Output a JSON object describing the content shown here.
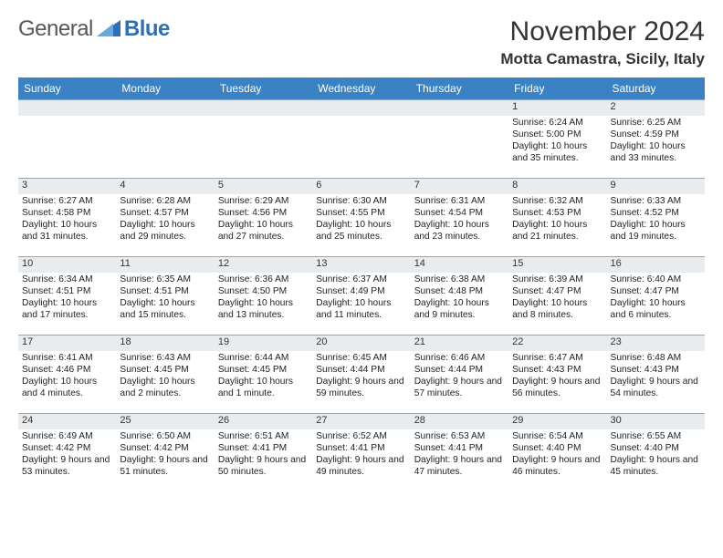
{
  "logo": {
    "word1": "General",
    "word2": "Blue",
    "icon": "triangle",
    "text_color": "#575757",
    "accent_color": "#2f6fb3"
  },
  "header": {
    "month_title": "November 2024",
    "location": "Motta Camastra, Sicily, Italy"
  },
  "styles": {
    "header_bg": "#3b82c4",
    "header_text": "#ffffff",
    "daynum_bg": "#e9ecef",
    "border_color": "#9aa8b6",
    "body_fontsize": 10.2,
    "daynum_fontsize": 11,
    "th_fontsize": 12,
    "title_fontsize": 30,
    "location_fontsize": 17
  },
  "columns": [
    "Sunday",
    "Monday",
    "Tuesday",
    "Wednesday",
    "Thursday",
    "Friday",
    "Saturday"
  ],
  "weeks": [
    [
      {
        "n": "",
        "sr": "",
        "ss": "",
        "dl": ""
      },
      {
        "n": "",
        "sr": "",
        "ss": "",
        "dl": ""
      },
      {
        "n": "",
        "sr": "",
        "ss": "",
        "dl": ""
      },
      {
        "n": "",
        "sr": "",
        "ss": "",
        "dl": ""
      },
      {
        "n": "",
        "sr": "",
        "ss": "",
        "dl": ""
      },
      {
        "n": "1",
        "sr": "Sunrise: 6:24 AM",
        "ss": "Sunset: 5:00 PM",
        "dl": "Daylight: 10 hours and 35 minutes."
      },
      {
        "n": "2",
        "sr": "Sunrise: 6:25 AM",
        "ss": "Sunset: 4:59 PM",
        "dl": "Daylight: 10 hours and 33 minutes."
      }
    ],
    [
      {
        "n": "3",
        "sr": "Sunrise: 6:27 AM",
        "ss": "Sunset: 4:58 PM",
        "dl": "Daylight: 10 hours and 31 minutes."
      },
      {
        "n": "4",
        "sr": "Sunrise: 6:28 AM",
        "ss": "Sunset: 4:57 PM",
        "dl": "Daylight: 10 hours and 29 minutes."
      },
      {
        "n": "5",
        "sr": "Sunrise: 6:29 AM",
        "ss": "Sunset: 4:56 PM",
        "dl": "Daylight: 10 hours and 27 minutes."
      },
      {
        "n": "6",
        "sr": "Sunrise: 6:30 AM",
        "ss": "Sunset: 4:55 PM",
        "dl": "Daylight: 10 hours and 25 minutes."
      },
      {
        "n": "7",
        "sr": "Sunrise: 6:31 AM",
        "ss": "Sunset: 4:54 PM",
        "dl": "Daylight: 10 hours and 23 minutes."
      },
      {
        "n": "8",
        "sr": "Sunrise: 6:32 AM",
        "ss": "Sunset: 4:53 PM",
        "dl": "Daylight: 10 hours and 21 minutes."
      },
      {
        "n": "9",
        "sr": "Sunrise: 6:33 AM",
        "ss": "Sunset: 4:52 PM",
        "dl": "Daylight: 10 hours and 19 minutes."
      }
    ],
    [
      {
        "n": "10",
        "sr": "Sunrise: 6:34 AM",
        "ss": "Sunset: 4:51 PM",
        "dl": "Daylight: 10 hours and 17 minutes."
      },
      {
        "n": "11",
        "sr": "Sunrise: 6:35 AM",
        "ss": "Sunset: 4:51 PM",
        "dl": "Daylight: 10 hours and 15 minutes."
      },
      {
        "n": "12",
        "sr": "Sunrise: 6:36 AM",
        "ss": "Sunset: 4:50 PM",
        "dl": "Daylight: 10 hours and 13 minutes."
      },
      {
        "n": "13",
        "sr": "Sunrise: 6:37 AM",
        "ss": "Sunset: 4:49 PM",
        "dl": "Daylight: 10 hours and 11 minutes."
      },
      {
        "n": "14",
        "sr": "Sunrise: 6:38 AM",
        "ss": "Sunset: 4:48 PM",
        "dl": "Daylight: 10 hours and 9 minutes."
      },
      {
        "n": "15",
        "sr": "Sunrise: 6:39 AM",
        "ss": "Sunset: 4:47 PM",
        "dl": "Daylight: 10 hours and 8 minutes."
      },
      {
        "n": "16",
        "sr": "Sunrise: 6:40 AM",
        "ss": "Sunset: 4:47 PM",
        "dl": "Daylight: 10 hours and 6 minutes."
      }
    ],
    [
      {
        "n": "17",
        "sr": "Sunrise: 6:41 AM",
        "ss": "Sunset: 4:46 PM",
        "dl": "Daylight: 10 hours and 4 minutes."
      },
      {
        "n": "18",
        "sr": "Sunrise: 6:43 AM",
        "ss": "Sunset: 4:45 PM",
        "dl": "Daylight: 10 hours and 2 minutes."
      },
      {
        "n": "19",
        "sr": "Sunrise: 6:44 AM",
        "ss": "Sunset: 4:45 PM",
        "dl": "Daylight: 10 hours and 1 minute."
      },
      {
        "n": "20",
        "sr": "Sunrise: 6:45 AM",
        "ss": "Sunset: 4:44 PM",
        "dl": "Daylight: 9 hours and 59 minutes."
      },
      {
        "n": "21",
        "sr": "Sunrise: 6:46 AM",
        "ss": "Sunset: 4:44 PM",
        "dl": "Daylight: 9 hours and 57 minutes."
      },
      {
        "n": "22",
        "sr": "Sunrise: 6:47 AM",
        "ss": "Sunset: 4:43 PM",
        "dl": "Daylight: 9 hours and 56 minutes."
      },
      {
        "n": "23",
        "sr": "Sunrise: 6:48 AM",
        "ss": "Sunset: 4:43 PM",
        "dl": "Daylight: 9 hours and 54 minutes."
      }
    ],
    [
      {
        "n": "24",
        "sr": "Sunrise: 6:49 AM",
        "ss": "Sunset: 4:42 PM",
        "dl": "Daylight: 9 hours and 53 minutes."
      },
      {
        "n": "25",
        "sr": "Sunrise: 6:50 AM",
        "ss": "Sunset: 4:42 PM",
        "dl": "Daylight: 9 hours and 51 minutes."
      },
      {
        "n": "26",
        "sr": "Sunrise: 6:51 AM",
        "ss": "Sunset: 4:41 PM",
        "dl": "Daylight: 9 hours and 50 minutes."
      },
      {
        "n": "27",
        "sr": "Sunrise: 6:52 AM",
        "ss": "Sunset: 4:41 PM",
        "dl": "Daylight: 9 hours and 49 minutes."
      },
      {
        "n": "28",
        "sr": "Sunrise: 6:53 AM",
        "ss": "Sunset: 4:41 PM",
        "dl": "Daylight: 9 hours and 47 minutes."
      },
      {
        "n": "29",
        "sr": "Sunrise: 6:54 AM",
        "ss": "Sunset: 4:40 PM",
        "dl": "Daylight: 9 hours and 46 minutes."
      },
      {
        "n": "30",
        "sr": "Sunrise: 6:55 AM",
        "ss": "Sunset: 4:40 PM",
        "dl": "Daylight: 9 hours and 45 minutes."
      }
    ]
  ]
}
